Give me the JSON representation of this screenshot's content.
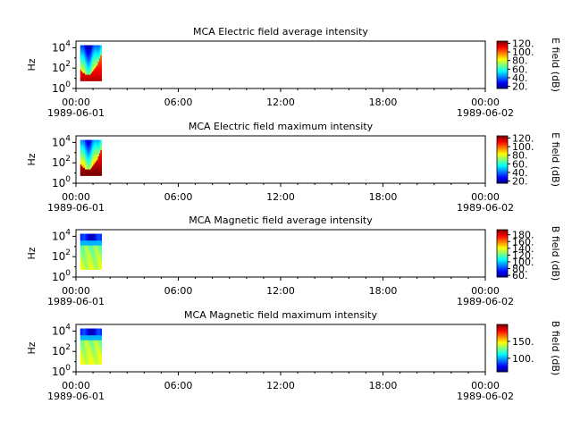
{
  "chart_data": [
    {
      "type": "heatmap",
      "title": "MCA  Electric field average intensity",
      "ylabel": "Hz",
      "y_scale": "log",
      "yticks": [
        "10^0",
        "10^2",
        "10^4"
      ],
      "x_range": [
        "1989-06-01T00:00",
        "1989-06-02T00:00"
      ],
      "xticks": [
        "00:00",
        "06:00",
        "12:00",
        "18:00",
        "00:00"
      ],
      "xtick_dates": [
        "1989-06-01",
        "1989-06-02"
      ],
      "data_time_range": [
        "1989-06-01T00:15",
        "1989-06-01T01:30"
      ],
      "freq_range_hz": [
        5.6,
        17800
      ],
      "colorbar": {
        "label": "E field (dB)",
        "min": 15,
        "max": 125,
        "ticks": [
          "20.",
          "40.",
          "60.",
          "80.",
          "100.",
          "120."
        ]
      },
      "colormap": "jet",
      "palette": [
        "#ff0000",
        "#ff8000",
        "#ffd000",
        "#c0ff00",
        "#40ff40",
        "#00ffc0",
        "#00c0ff",
        "#0040ff",
        "#0000c0"
      ]
    },
    {
      "type": "heatmap",
      "title": "MCA  Electric field maximum intensity",
      "ylabel": "Hz",
      "y_scale": "log",
      "yticks": [
        "10^0",
        "10^2",
        "10^4"
      ],
      "x_range": [
        "1989-06-01T00:00",
        "1989-06-02T00:00"
      ],
      "xticks": [
        "00:00",
        "06:00",
        "12:00",
        "18:00",
        "00:00"
      ],
      "xtick_dates": [
        "1989-06-01",
        "1989-06-02"
      ],
      "data_time_range": [
        "1989-06-01T00:15",
        "1989-06-01T01:30"
      ],
      "freq_range_hz": [
        5.6,
        17800
      ],
      "colorbar": {
        "label": "E field (dB)",
        "min": 15,
        "max": 125,
        "ticks": [
          "20.",
          "40.",
          "60.",
          "80.",
          "100.",
          "120."
        ]
      },
      "colormap": "jet"
    },
    {
      "type": "heatmap",
      "title": "MCA  Magnetic field average intensity",
      "ylabel": "Hz",
      "y_scale": "log",
      "yticks": [
        "10^0",
        "10^2",
        "10^4"
      ],
      "x_range": [
        "1989-06-01T00:00",
        "1989-06-02T00:00"
      ],
      "xticks": [
        "00:00",
        "06:00",
        "12:00",
        "18:00",
        "00:00"
      ],
      "xtick_dates": [
        "1989-06-01",
        "1989-06-02"
      ],
      "data_time_range": [
        "1989-06-01T00:15",
        "1989-06-01T01:30"
      ],
      "freq_range_hz": [
        5.6,
        17800
      ],
      "colorbar": {
        "label": "B field (dB)",
        "min": 55,
        "max": 195,
        "ticks": [
          "60.",
          "80.",
          "100.",
          "120.",
          "140.",
          "160.",
          "180."
        ]
      },
      "colormap": "jet"
    },
    {
      "type": "heatmap",
      "title": "MCA  Magnetic field maximum intensity",
      "ylabel": "Hz",
      "y_scale": "log",
      "yticks": [
        "10^0",
        "10^2",
        "10^4"
      ],
      "x_range": [
        "1989-06-01T00:00",
        "1989-06-02T00:00"
      ],
      "xticks": [
        "00:00",
        "06:00",
        "12:00",
        "18:00",
        "00:00"
      ],
      "xtick_dates": [
        "1989-06-01",
        "1989-06-02"
      ],
      "data_time_range": [
        "1989-06-01T00:15",
        "1989-06-01T01:30"
      ],
      "freq_range_hz": [
        5.6,
        17800
      ],
      "colorbar": {
        "label": "B field (dB)",
        "min": 60,
        "max": 200,
        "ticks": [
          "100.",
          "150."
        ]
      },
      "colormap": "jet"
    }
  ]
}
